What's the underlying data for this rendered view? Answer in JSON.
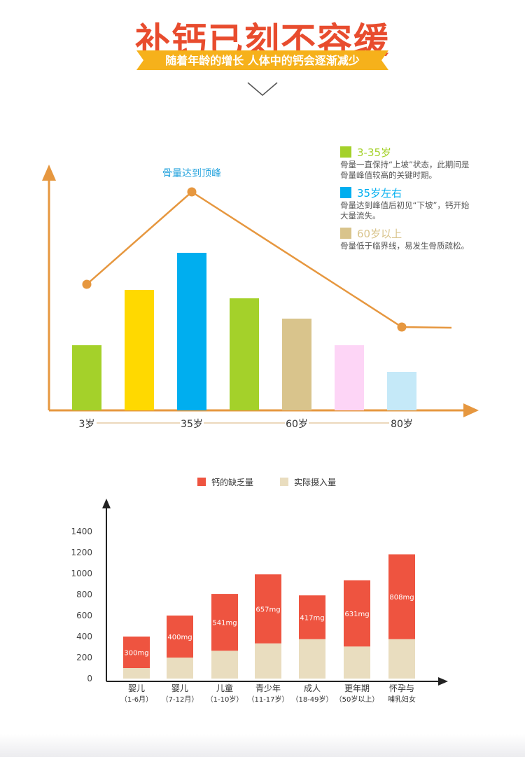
{
  "header": {
    "title": "补钙已刻不容缓",
    "subtitle": "随着年龄的增长 人体中的钙会逐渐减少",
    "title_color": "#e84c2e",
    "banner_color": "#f6b11b"
  },
  "chart_data": [
    {
      "type": "bar",
      "categories": [
        "",
        "",
        "",
        "",
        "",
        "",
        ""
      ],
      "values": [
        93,
        172,
        225,
        160,
        131,
        93,
        55
      ],
      "bar_colors": [
        "#a4d12a",
        "#ffd900",
        "#00aeef",
        "#a4d12a",
        "#d9c48c",
        "#fdd5f6",
        "#c5e9f8"
      ],
      "x_tick_labels": [
        "3岁",
        "35岁",
        "60岁",
        "80岁"
      ],
      "trend_line": {
        "color": "#e6973f",
        "points": [
          [
            0,
            180
          ],
          [
            2,
            312
          ],
          [
            6,
            119
          ],
          [
            7,
            118
          ]
        ],
        "annotation": "骨量达到顶峰",
        "annotation_color": "#2aa5de"
      },
      "legend": [
        {
          "title": "3-35岁",
          "color": "#a4d12a",
          "desc": [
            "骨量一直保持“上坡”状态，此期间是",
            "骨量峰值较高的关键时期。"
          ]
        },
        {
          "title": "35岁左右",
          "color": "#00aeef",
          "desc": [
            "骨量达到峰值后初见“下坡”，钙开始",
            "大量流失。"
          ]
        },
        {
          "title": "60岁以上",
          "color": "#d9c48c",
          "desc": [
            "骨量低于临界线，易发生骨质疏松。"
          ]
        }
      ],
      "axis_color": "#e6973f"
    },
    {
      "type": "bar",
      "stacked": true,
      "categories": [
        [
          "婴儿",
          "（1-6月）"
        ],
        [
          "婴儿",
          "（7-12月）"
        ],
        [
          "儿童",
          "（1-10岁）"
        ],
        [
          "青少年",
          "（11-17岁）"
        ],
        [
          "成人",
          "（18-49岁）"
        ],
        [
          "更年期",
          "（50岁以上）"
        ],
        [
          "怀孕与",
          "哺乳妇女"
        ]
      ],
      "series": [
        {
          "name": "实际摄入量",
          "color": "#e9ddbf",
          "values": [
            100,
            200,
            265,
            335,
            375,
            305,
            375
          ]
        },
        {
          "name": "钙的缺乏量",
          "color": "#ee5440",
          "values": [
            300,
            400,
            541,
            657,
            417,
            631,
            808
          ]
        }
      ],
      "bar_labels": [
        "300mg",
        "400mg",
        "541mg",
        "657mg",
        "417mg",
        "631mg",
        "808mg"
      ],
      "y_ticks": [
        0,
        200,
        400,
        600,
        800,
        1000,
        1200,
        1400
      ],
      "ylim": [
        0,
        1400
      ],
      "legend_position": "top"
    }
  ]
}
